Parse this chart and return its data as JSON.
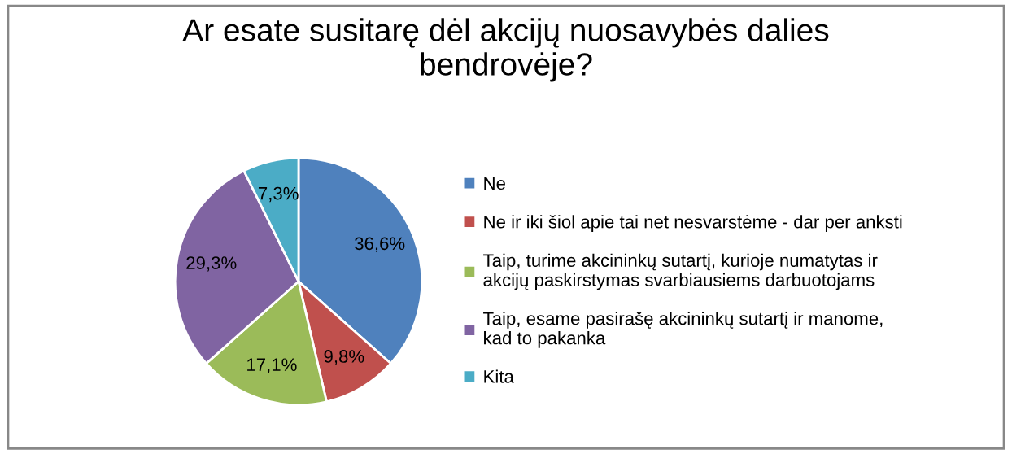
{
  "chart_data": {
    "type": "pie",
    "title": "Ar esate susitarę dėl akcijų nuosavybės dalies\nbendrovėje?",
    "categories": [
      "Ne",
      "Ne ir iki šiol apie tai net nesvarstėme - dar per anksti",
      "Taip, turime akcininkų sutartį, kurioje numatytas ir\nakcijų paskirstymas svarbiausiems darbuotojams",
      "Taip, esame pasirašę akcininkų sutartį ir manome,\nkad to pakanka",
      "Kita"
    ],
    "values": [
      36.6,
      9.8,
      17.1,
      29.3,
      7.3
    ],
    "value_labels": [
      "36,6%",
      "9,8%",
      "17,1%",
      "29,3%",
      "7,3%"
    ],
    "colors": [
      "#4f81bd",
      "#c0504d",
      "#9bbb59",
      "#8064a2",
      "#4bacc6"
    ],
    "legend": "right"
  }
}
